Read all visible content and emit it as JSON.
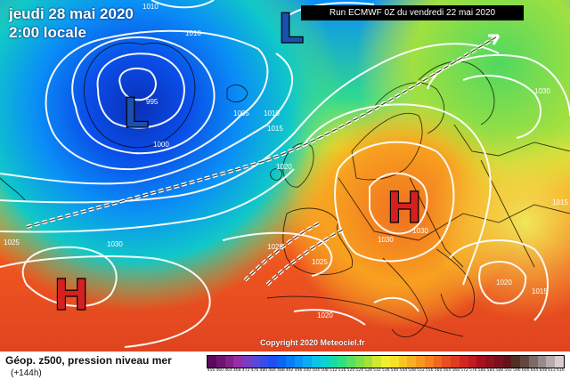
{
  "header": {
    "date_line": "jeudi 28 mai 2020",
    "time_line": "2:00 locale",
    "run_info": "Run ECMWF 0Z du vendredi 22 mai 2020"
  },
  "footer": {
    "product": "Géop. z500, pression niveau mer",
    "horizon": "(+144h)",
    "copyright": "Copyright 2020 Meteociel.fr"
  },
  "pressure_centers": [
    {
      "symbol": "L",
      "kind": "low"
    },
    {
      "symbol": "L",
      "kind": "low"
    },
    {
      "symbol": "H",
      "kind": "high"
    },
    {
      "symbol": "H",
      "kind": "high"
    }
  ],
  "isobar_labels": [
    "1010",
    "1010",
    "995",
    "1000",
    "1005",
    "1010",
    "1015",
    "1020",
    "1025",
    "1030",
    "1025",
    "1025",
    "1030",
    "1030",
    "1020",
    "1020",
    "1015",
    "1015",
    "1030"
  ],
  "scale": {
    "labels": [
      "456",
      "460",
      "464",
      "468",
      "472",
      "476",
      "480",
      "484",
      "488",
      "492",
      "496",
      "500",
      "504",
      "508",
      "512",
      "516",
      "520",
      "524",
      "528",
      "532",
      "536",
      "540",
      "544",
      "548",
      "552",
      "556",
      "560",
      "564",
      "568",
      "572",
      "576",
      "580",
      "584",
      "588",
      "592",
      "596",
      "600",
      "604",
      "608",
      "612",
      "616"
    ],
    "colors": [
      "#5a0a5a",
      "#6e1470",
      "#84208a",
      "#9a2ca4",
      "#7a3cc4",
      "#5a48d8",
      "#3a4ce8",
      "#1e50f0",
      "#0a64f6",
      "#0a7cf6",
      "#0a94f6",
      "#0aacf0",
      "#0ac4e8",
      "#0ad4d0",
      "#18dca8",
      "#30e080",
      "#58e060",
      "#80e048",
      "#a8e038",
      "#d0e830",
      "#f0f030",
      "#f8e028",
      "#f8c820",
      "#f8b020",
      "#f89820",
      "#f88020",
      "#f06820",
      "#e85020",
      "#e03c20",
      "#d02820",
      "#c01c20",
      "#a81020",
      "#901020",
      "#781020",
      "#601418",
      "#503020",
      "#604840",
      "#7a6a6a",
      "#988a8a",
      "#b8aaaa",
      "#d8cccc"
    ]
  },
  "colors": {
    "isobar": "#ffffff",
    "low_symbol": "#1a4fb0",
    "high_symbol": "#d42020",
    "coast": "#000000"
  }
}
